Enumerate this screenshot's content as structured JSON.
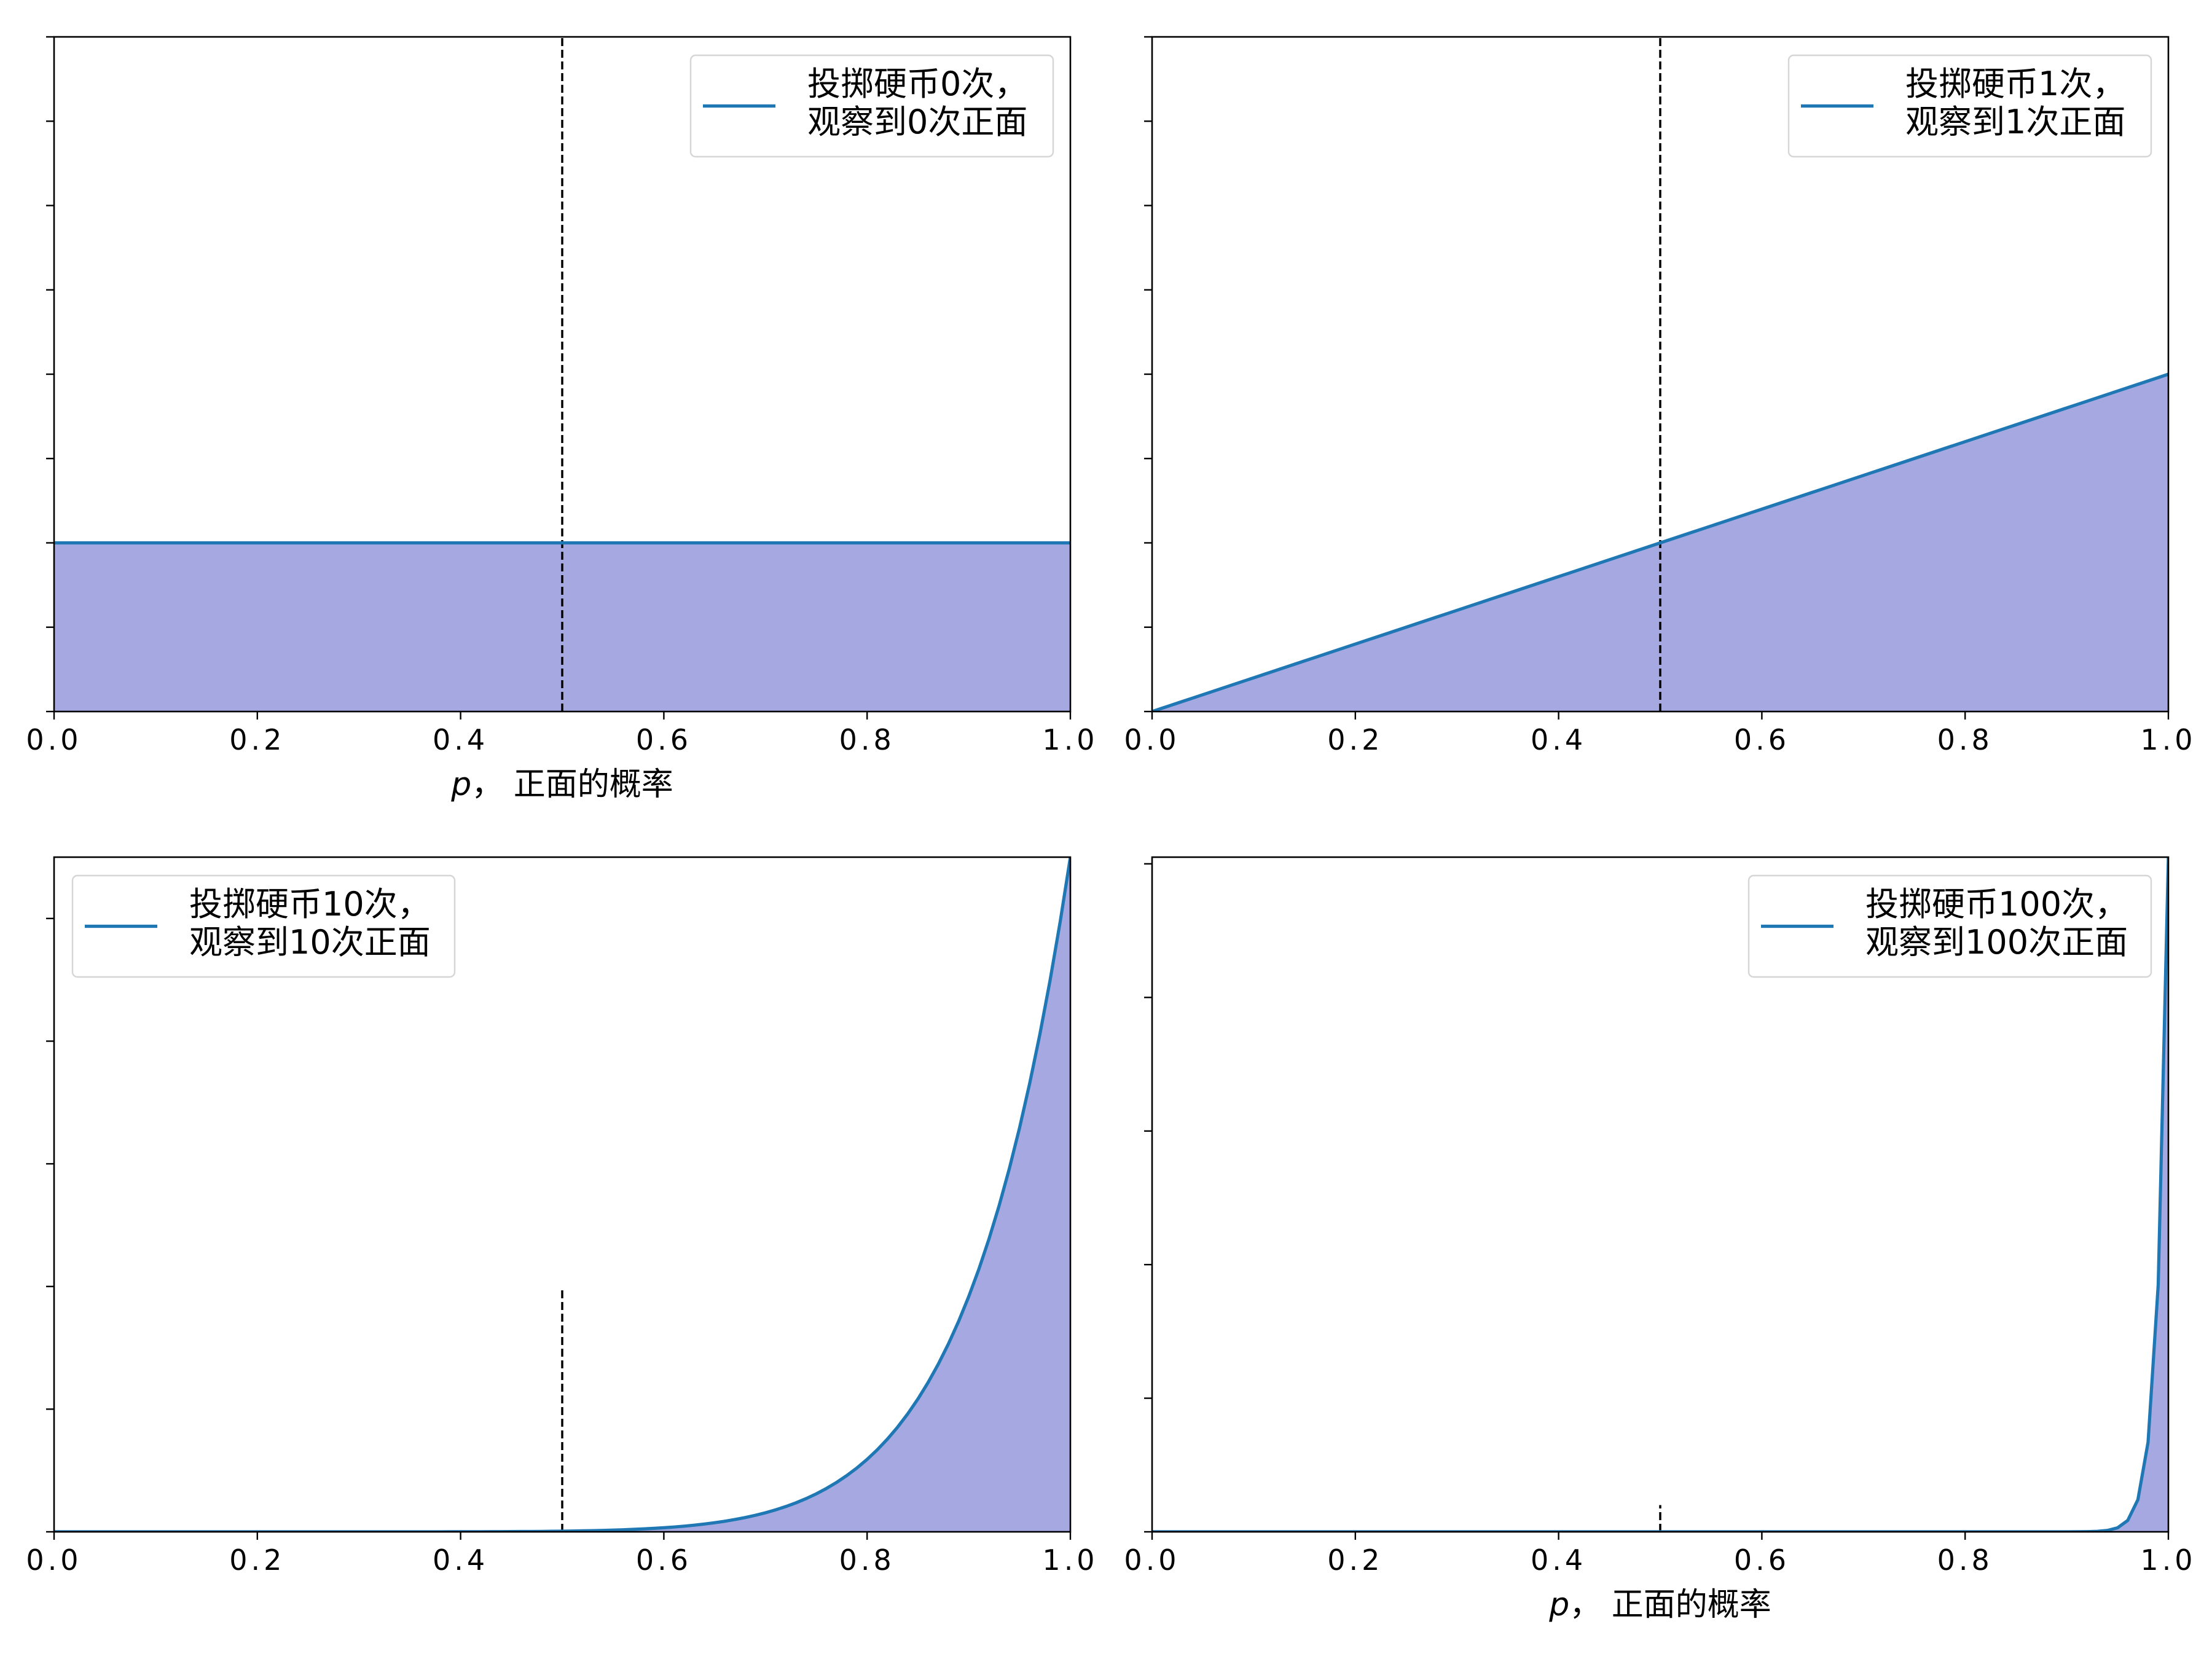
{
  "figure": {
    "layout": "2x2 grid",
    "colors": {
      "line": "#1f77b4",
      "fill": "#a6a8e2",
      "vline": "#000000",
      "axes": "#000000"
    }
  },
  "chart_data": [
    {
      "type": "area",
      "title": "",
      "xlabel": "p, 正面的概率",
      "xlabel_parts": [
        "p",
        "，  正面的概率"
      ],
      "ylabel": "",
      "xlim": [
        0,
        1
      ],
      "ylim": [
        0,
        4
      ],
      "x_ticks": [
        0.0,
        0.2,
        0.4,
        0.6,
        0.8,
        1.0
      ],
      "x_tick_labels": [
        "0.0",
        "0.2",
        "0.4",
        "0.6",
        "0.8",
        "1.0"
      ],
      "y_ticks": [
        0,
        0.5,
        1,
        1.5,
        2,
        2.5,
        3,
        3.5,
        4
      ],
      "y_tick_labels_shown": false,
      "series": [
        {
          "name": "投掷硬币0次，\n观察到0次正面",
          "legend_lines": [
            "投掷硬币0次，",
            "观察到0次正面"
          ],
          "function": "(n+1)·p^n",
          "n": 0
        }
      ],
      "vline": {
        "x": 0.5,
        "ymax": 4,
        "style": "dashed"
      },
      "legend": {
        "position": "top-right"
      },
      "grid": false
    },
    {
      "type": "area",
      "title": "",
      "xlabel": "",
      "ylabel": "",
      "xlim": [
        0,
        1
      ],
      "ylim": [
        0,
        4
      ],
      "x_ticks": [
        0.0,
        0.2,
        0.4,
        0.6,
        0.8,
        1.0
      ],
      "x_tick_labels": [
        "0.0",
        "0.2",
        "0.4",
        "0.6",
        "0.8",
        "1.0"
      ],
      "y_ticks": [
        0,
        0.5,
        1,
        1.5,
        2,
        2.5,
        3,
        3.5,
        4
      ],
      "y_tick_labels_shown": false,
      "series": [
        {
          "name": "投掷硬币1次，\n观察到1次正面",
          "legend_lines": [
            "投掷硬币1次，",
            "观察到1次正面"
          ],
          "function": "(n+1)·p^n",
          "n": 1
        }
      ],
      "vline": {
        "x": 0.5,
        "ymax": 4,
        "style": "dashed"
      },
      "legend": {
        "position": "top-right"
      },
      "grid": false
    },
    {
      "type": "area",
      "title": "",
      "xlabel": "",
      "ylabel": "",
      "xlim": [
        0,
        1
      ],
      "ylim": [
        0,
        11
      ],
      "x_ticks": [
        0.0,
        0.2,
        0.4,
        0.6,
        0.8,
        1.0
      ],
      "x_tick_labels": [
        "0.0",
        "0.2",
        "0.4",
        "0.6",
        "0.8",
        "1.0"
      ],
      "y_ticks": [
        0,
        2,
        4,
        6,
        8,
        10
      ],
      "y_tick_labels_shown": false,
      "series": [
        {
          "name": "投掷硬币10次，\n观察到10次正面",
          "legend_lines": [
            "投掷硬币10次，",
            "观察到10次正面"
          ],
          "function": "(n+1)·p^n",
          "n": 10
        }
      ],
      "vline": {
        "x": 0.5,
        "ymax": 3.96,
        "style": "dashed"
      },
      "legend": {
        "position": "top-left"
      },
      "grid": false
    },
    {
      "type": "area",
      "title": "",
      "xlabel": "p, 正面的概率",
      "xlabel_parts": [
        "p",
        "，  正面的概率"
      ],
      "ylabel": "",
      "xlim": [
        0,
        1
      ],
      "ylim": [
        0,
        101
      ],
      "x_ticks": [
        0.0,
        0.2,
        0.4,
        0.6,
        0.8,
        1.0
      ],
      "x_tick_labels": [
        "0.0",
        "0.2",
        "0.4",
        "0.6",
        "0.8",
        "1.0"
      ],
      "y_ticks": [
        0,
        20,
        40,
        60,
        80,
        100
      ],
      "y_tick_labels_shown": false,
      "series": [
        {
          "name": "投掷硬币100次，\n观察到100次正面",
          "legend_lines": [
            "投掷硬币100次，",
            "观察到100次正面"
          ],
          "function": "(n+1)·p^n",
          "n": 100
        }
      ],
      "vline": {
        "x": 0.5,
        "ymax": 4,
        "style": "dashed"
      },
      "legend": {
        "position": "top-right"
      },
      "grid": false
    }
  ]
}
